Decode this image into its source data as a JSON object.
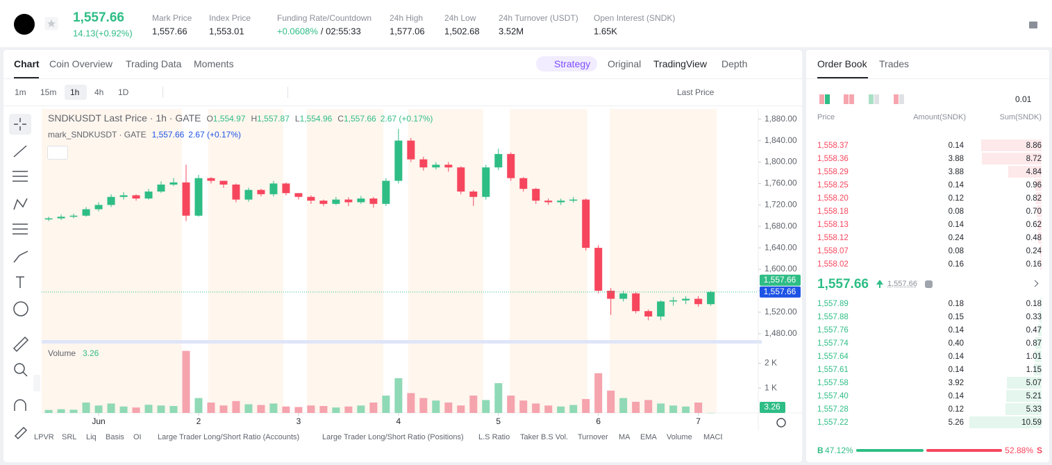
{
  "header": {
    "price": "1,557.66",
    "change": "14.13(+0.92%)",
    "stats": [
      {
        "label": "Mark Price",
        "value": "1,557.66"
      },
      {
        "label": "Index Price",
        "value": "1,553.01"
      },
      {
        "label": "Funding Rate/Countdown",
        "value": "+0.0608%",
        "value2": "/ 02:55:33"
      },
      {
        "label": "24h High",
        "value": "1,577.06"
      },
      {
        "label": "24h Low",
        "value": "1,502.68"
      },
      {
        "label": "24h Turnover (USDT)",
        "value": "3.52M"
      },
      {
        "label": "Open Interest (SNDK)",
        "value": "1.65K"
      }
    ]
  },
  "tabs": [
    "Chart",
    "Coin Overview",
    "Trading Data",
    "Moments"
  ],
  "view_tabs": [
    "Strategy",
    "Original",
    "TradingView",
    "Depth"
  ],
  "intervals": [
    "1m",
    "15m",
    "1h",
    "4h",
    "1D"
  ],
  "price_source": "Last Price",
  "indicators": [
    "LPVR",
    "SRL",
    "Liq",
    "Basis",
    "OI",
    "Large Trader Long/Short Ratio (Accounts)",
    "Large Trader Long/Short Ratio (Positions)",
    "L.S Ratio",
    "Taker B.S Vol.",
    "Turnover",
    "MA",
    "EMA",
    "Volume",
    "MACD"
  ],
  "chart_data": [
    {
      "type": "candlestick",
      "title": "SNDKUSDT Last Price · 1h · GATE",
      "ohlc": [
        {
          "key": "O",
          "value": "1,554.97"
        },
        {
          "key": "H",
          "value": "1,557.87"
        },
        {
          "key": "L",
          "value": "1,554.96"
        },
        {
          "key": "C",
          "value": "1,557.66"
        }
      ],
      "change": "2.67 (+0.17%)",
      "subtitle": "mark_SNDKUSDT · GATE",
      "mark_price": "1,557.66",
      "mark_change": "2.67 (+0.17%)",
      "up_color": "#2ebd85",
      "down_color": "#f6465d",
      "x": [
        0.5,
        0.625,
        0.75,
        0.875,
        1,
        1.125,
        1.25,
        1.375,
        1.5,
        1.625,
        1.75,
        1.875,
        2,
        2.125,
        2.25,
        2.375,
        2.5,
        2.625,
        2.75,
        2.875,
        3,
        3.125,
        3.25,
        3.375,
        3.5,
        3.625,
        3.75,
        3.875,
        4,
        4.125,
        4.25,
        4.375,
        4.5,
        4.625,
        4.75,
        4.875,
        5,
        5.125,
        5.25,
        5.375,
        5.5,
        5.625,
        5.75,
        5.875,
        6,
        6.125,
        6.25,
        6.375,
        6.5,
        6.625,
        6.75,
        6.875,
        7,
        7.125
      ],
      "open": [
        1693,
        1695,
        1698,
        1700,
        1712,
        1720,
        1735,
        1738,
        1732,
        1745,
        1758,
        1762,
        1700,
        1770,
        1765,
        1758,
        1730,
        1748,
        1740,
        1760,
        1742,
        1735,
        1728,
        1722,
        1730,
        1725,
        1732,
        1722,
        1765,
        1840,
        1805,
        1790,
        1795,
        1790,
        1745,
        1735,
        1790,
        1815,
        1770,
        1750,
        1728,
        1725,
        1728,
        1730,
        1640,
        1560,
        1545,
        1555,
        1522,
        1512,
        1540,
        1542,
        1545,
        1535
      ],
      "high": [
        1698,
        1702,
        1704,
        1716,
        1725,
        1740,
        1744,
        1740,
        1750,
        1764,
        1770,
        1795,
        1776,
        1772,
        1764,
        1760,
        1752,
        1750,
        1765,
        1762,
        1742,
        1738,
        1730,
        1735,
        1734,
        1737,
        1735,
        1770,
        1862,
        1845,
        1810,
        1800,
        1800,
        1792,
        1748,
        1795,
        1825,
        1818,
        1772,
        1752,
        1732,
        1732,
        1735,
        1732,
        1645,
        1565,
        1560,
        1558,
        1525,
        1542,
        1548,
        1550,
        1550,
        1560
      ],
      "low": [
        1690,
        1692,
        1695,
        1698,
        1708,
        1716,
        1730,
        1728,
        1730,
        1742,
        1755,
        1690,
        1698,
        1760,
        1752,
        1725,
        1726,
        1736,
        1736,
        1738,
        1730,
        1722,
        1718,
        1720,
        1718,
        1722,
        1715,
        1718,
        1760,
        1800,
        1784,
        1786,
        1782,
        1740,
        1718,
        1730,
        1785,
        1765,
        1745,
        1722,
        1720,
        1720,
        1724,
        1635,
        1555,
        1515,
        1540,
        1518,
        1505,
        1505,
        1532,
        1535,
        1530,
        1532
      ],
      "close": [
        1695,
        1698,
        1700,
        1712,
        1720,
        1735,
        1738,
        1732,
        1745,
        1758,
        1762,
        1700,
        1770,
        1765,
        1758,
        1730,
        1748,
        1740,
        1760,
        1742,
        1735,
        1728,
        1722,
        1730,
        1725,
        1732,
        1722,
        1765,
        1840,
        1805,
        1790,
        1795,
        1790,
        1745,
        1735,
        1790,
        1815,
        1770,
        1750,
        1728,
        1725,
        1728,
        1730,
        1640,
        1560,
        1545,
        1555,
        1522,
        1512,
        1540,
        1542,
        1545,
        1535,
        1557.66
      ],
      "xlim": [
        0.43,
        7.6
      ],
      "xticks": [
        {
          "value": 1,
          "label": "Jun"
        },
        2,
        3,
        4,
        5,
        6,
        7
      ],
      "ylim": [
        1468,
        1899
      ],
      "yticks": [
        {
          "value": 1480,
          "label": "1,480.00"
        },
        {
          "value": 1520,
          "label": "1,520.00"
        },
        {
          "value": 1560,
          "label": "1,560.00"
        },
        {
          "value": 1600,
          "label": "1,600.00"
        },
        {
          "value": 1640,
          "label": "1,640.00"
        },
        {
          "value": 1680,
          "label": "1,680.00"
        },
        {
          "value": 1720,
          "label": "1,720.00"
        },
        {
          "value": 1760,
          "label": "1,760.00"
        },
        {
          "value": 1800,
          "label": "1,800.00"
        },
        {
          "value": 1840,
          "label": "1,840.00"
        },
        {
          "value": 1880,
          "label": "1,880.00"
        }
      ],
      "price_tags": [
        {
          "value": 1557.66,
          "label": "1,557.66",
          "color": "#2ebd85"
        },
        {
          "value": 1557.66,
          "label": "1,557.66",
          "color": "#1e53e5"
        }
      ]
    },
    {
      "type": "bar",
      "title": "Volume",
      "values": [
        120,
        150,
        130,
        420,
        300,
        380,
        260,
        220,
        330,
        300,
        280,
        2500,
        600,
        420,
        300,
        480,
        350,
        320,
        380,
        260,
        240,
        300,
        280,
        220,
        260,
        300,
        420,
        700,
        1400,
        800,
        600,
        500,
        420,
        300,
        700,
        520,
        1200,
        700,
        500,
        380,
        300,
        260,
        320,
        560,
        1600,
        900,
        600,
        450,
        520,
        380,
        300,
        260,
        420,
        3.26
      ],
      "up_color": "#8fd9b6",
      "down_color": "#f5a3ad",
      "tag_color": "#2ebd85",
      "ylim": [
        0,
        2740
      ],
      "yticks": [
        {
          "value": 1000,
          "label": "1 K"
        },
        {
          "value": 2000,
          "label": "2 K"
        }
      ]
    }
  ],
  "order_book": {
    "tabs": [
      "Order Book",
      "Trades"
    ],
    "precision": "0.01",
    "columns": [
      "Price",
      "Amount(SNDK)",
      "Sum(SNDK)"
    ],
    "asks": [
      [
        "1,558.37",
        "0.14",
        "8.86"
      ],
      [
        "1,558.36",
        "3.88",
        "8.72"
      ],
      [
        "1,558.29",
        "3.88",
        "4.84"
      ],
      [
        "1,558.25",
        "0.14",
        "0.96"
      ],
      [
        "1,558.20",
        "0.12",
        "0.82"
      ],
      [
        "1,558.18",
        "0.08",
        "0.70"
      ],
      [
        "1,558.13",
        "0.14",
        "0.62"
      ],
      [
        "1,558.12",
        "0.24",
        "0.48"
      ],
      [
        "1,558.07",
        "0.08",
        "0.24"
      ],
      [
        "1,558.02",
        "0.16",
        "0.16"
      ]
    ],
    "last_price": "1,557.66",
    "mark_price": "1,557.66",
    "bids": [
      [
        "1,557.89",
        "0.18",
        "0.18"
      ],
      [
        "1,557.88",
        "0.15",
        "0.33"
      ],
      [
        "1,557.76",
        "0.14",
        "0.47"
      ],
      [
        "1,557.74",
        "0.40",
        "0.87"
      ],
      [
        "1,557.64",
        "0.14",
        "1.01"
      ],
      [
        "1,557.61",
        "0.14",
        "1.15"
      ],
      [
        "1,557.58",
        "3.92",
        "5.07"
      ],
      [
        "1,557.40",
        "0.14",
        "5.21"
      ],
      [
        "1,557.28",
        "0.12",
        "5.33"
      ],
      [
        "1,557.22",
        "5.26",
        "10.59"
      ]
    ],
    "buy": {
      "label": "B",
      "value": 47.12,
      "value_label": "47.12%"
    },
    "sell": {
      "label": "S",
      "value": 52.88,
      "value_label": "52.88%"
    }
  }
}
